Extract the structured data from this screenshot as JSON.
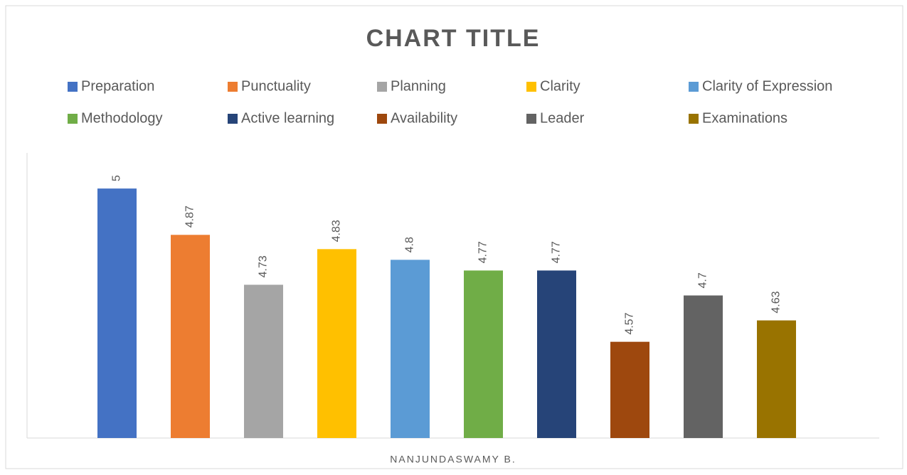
{
  "chart_data": {
    "type": "bar",
    "title": "CHART TITLE",
    "categories": [
      "NANJUNDASWAMY B."
    ],
    "series": [
      {
        "name": "Preparation",
        "color": "#4472c4",
        "values": [
          5
        ]
      },
      {
        "name": "Punctuality",
        "color": "#ed7d31",
        "values": [
          4.87
        ]
      },
      {
        "name": "Planning",
        "color": "#a5a5a5",
        "values": [
          4.73
        ]
      },
      {
        "name": "Clarity",
        "color": "#ffc000",
        "values": [
          4.83
        ]
      },
      {
        "name": "Clarity of Expression",
        "color": "#5b9bd5",
        "values": [
          4.8
        ]
      },
      {
        "name": "Methodology",
        "color": "#70ad47",
        "values": [
          4.77
        ]
      },
      {
        "name": "Active learning",
        "color": "#264478",
        "values": [
          4.77
        ]
      },
      {
        "name": "Availability",
        "color": "#9e480e",
        "values": [
          4.57
        ]
      },
      {
        "name": "Leader",
        "color": "#636363",
        "values": [
          4.7
        ]
      },
      {
        "name": "Examinations",
        "color": "#997300",
        "values": [
          4.63
        ]
      }
    ],
    "ylim": [
      4.3,
      5.1
    ],
    "legend": "top"
  }
}
